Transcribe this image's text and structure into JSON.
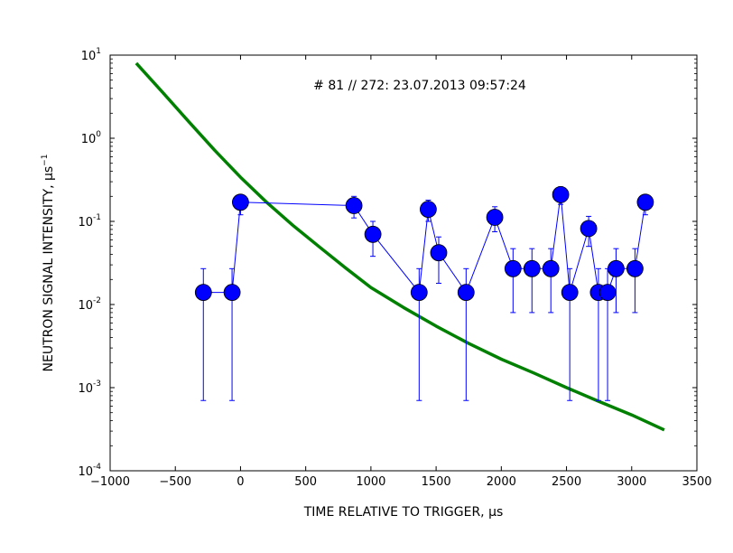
{
  "chart_data": {
    "type": "scatter",
    "annotation": "# 81 // 272: 23.07.2013 09:57:24",
    "xlabel": "TIME RELATIVE TO TRIGGER, μs",
    "ylabel": "NEUTRON SIGNAL INTENSITY, μs",
    "ylabel_exponent": "−1",
    "xlim": [
      -1000,
      3500
    ],
    "ylim": [
      0.0001,
      10
    ],
    "yscale": "log",
    "grid": false,
    "x_ticks": [
      {
        "value": -1000,
        "label": "−1000"
      },
      {
        "value": -500,
        "label": "−500"
      },
      {
        "value": 0,
        "label": "0"
      },
      {
        "value": 500,
        "label": "500"
      },
      {
        "value": 1000,
        "label": "1000"
      },
      {
        "value": 1500,
        "label": "1500"
      },
      {
        "value": 2000,
        "label": "2000"
      },
      {
        "value": 2500,
        "label": "2500"
      },
      {
        "value": 3000,
        "label": "3000"
      },
      {
        "value": 3500,
        "label": "3500"
      }
    ],
    "y_ticks": [
      {
        "value": 0.0001,
        "base": "10",
        "exp": "-4"
      },
      {
        "value": 0.001,
        "base": "10",
        "exp": "-3"
      },
      {
        "value": 0.01,
        "base": "10",
        "exp": "-2"
      },
      {
        "value": 0.1,
        "base": "10",
        "exp": "-1"
      },
      {
        "value": 1,
        "base": "10",
        "exp": "0"
      },
      {
        "value": 10,
        "base": "10",
        "exp": "1"
      }
    ],
    "series": [
      {
        "type": "line-errorbar",
        "color": "#0000ff",
        "marker_color": "#0000ff",
        "points": [
          {
            "x": -285,
            "y": 0.014,
            "lo": 0.0007,
            "hi": 0.027
          },
          {
            "x": -65,
            "y": 0.014,
            "lo": 0.0007,
            "hi": 0.027
          },
          {
            "x": 0,
            "y": 0.17,
            "lo": 0.12,
            "hi": 0.17
          },
          {
            "x": 870,
            "y": 0.155,
            "lo": 0.11,
            "hi": 0.2
          },
          {
            "x": 1015,
            "y": 0.07,
            "lo": 0.038,
            "hi": 0.1
          },
          {
            "x": 1370,
            "y": 0.014,
            "lo": 0.0007,
            "hi": 0.027
          },
          {
            "x": 1440,
            "y": 0.14,
            "lo": 0.1,
            "hi": 0.18
          },
          {
            "x": 1520,
            "y": 0.042,
            "lo": 0.018,
            "hi": 0.065
          },
          {
            "x": 1730,
            "y": 0.014,
            "lo": 0.0007,
            "hi": 0.027
          },
          {
            "x": 1950,
            "y": 0.112,
            "lo": 0.075,
            "hi": 0.15
          },
          {
            "x": 2090,
            "y": 0.027,
            "lo": 0.008,
            "hi": 0.047
          },
          {
            "x": 2235,
            "y": 0.027,
            "lo": 0.008,
            "hi": 0.047
          },
          {
            "x": 2380,
            "y": 0.027,
            "lo": 0.008,
            "hi": 0.047
          },
          {
            "x": 2455,
            "y": 0.21,
            "lo": 0.16,
            "hi": 0.26
          },
          {
            "x": 2525,
            "y": 0.014,
            "lo": 0.0007,
            "hi": 0.027
          },
          {
            "x": 2670,
            "y": 0.082,
            "lo": 0.05,
            "hi": 0.115
          },
          {
            "x": 2745,
            "y": 0.014,
            "lo": 0.0007,
            "hi": 0.027
          },
          {
            "x": 2815,
            "y": 0.014,
            "lo": 0.0007,
            "hi": 0.027
          },
          {
            "x": 2880,
            "y": 0.027,
            "lo": 0.008,
            "hi": 0.047
          },
          {
            "x": 3025,
            "y": 0.027,
            "lo": 0.008,
            "hi": 0.047
          },
          {
            "x": 3105,
            "y": 0.17,
            "lo": 0.12,
            "hi": 0.17
          }
        ]
      },
      {
        "type": "line",
        "color": "#008000",
        "points": [
          {
            "x": -800,
            "y": 8.0
          },
          {
            "x": -600,
            "y": 3.6
          },
          {
            "x": -400,
            "y": 1.6
          },
          {
            "x": -200,
            "y": 0.72
          },
          {
            "x": 0,
            "y": 0.34
          },
          {
            "x": 200,
            "y": 0.17
          },
          {
            "x": 400,
            "y": 0.09
          },
          {
            "x": 600,
            "y": 0.05
          },
          {
            "x": 800,
            "y": 0.028
          },
          {
            "x": 1000,
            "y": 0.016
          },
          {
            "x": 1250,
            "y": 0.0092
          },
          {
            "x": 1500,
            "y": 0.0055
          },
          {
            "x": 1750,
            "y": 0.0034
          },
          {
            "x": 2000,
            "y": 0.0022
          },
          {
            "x": 2250,
            "y": 0.0015
          },
          {
            "x": 2500,
            "y": 0.001
          },
          {
            "x": 2750,
            "y": 0.00068
          },
          {
            "x": 3000,
            "y": 0.00047
          },
          {
            "x": 3250,
            "y": 0.00031
          }
        ]
      }
    ]
  }
}
